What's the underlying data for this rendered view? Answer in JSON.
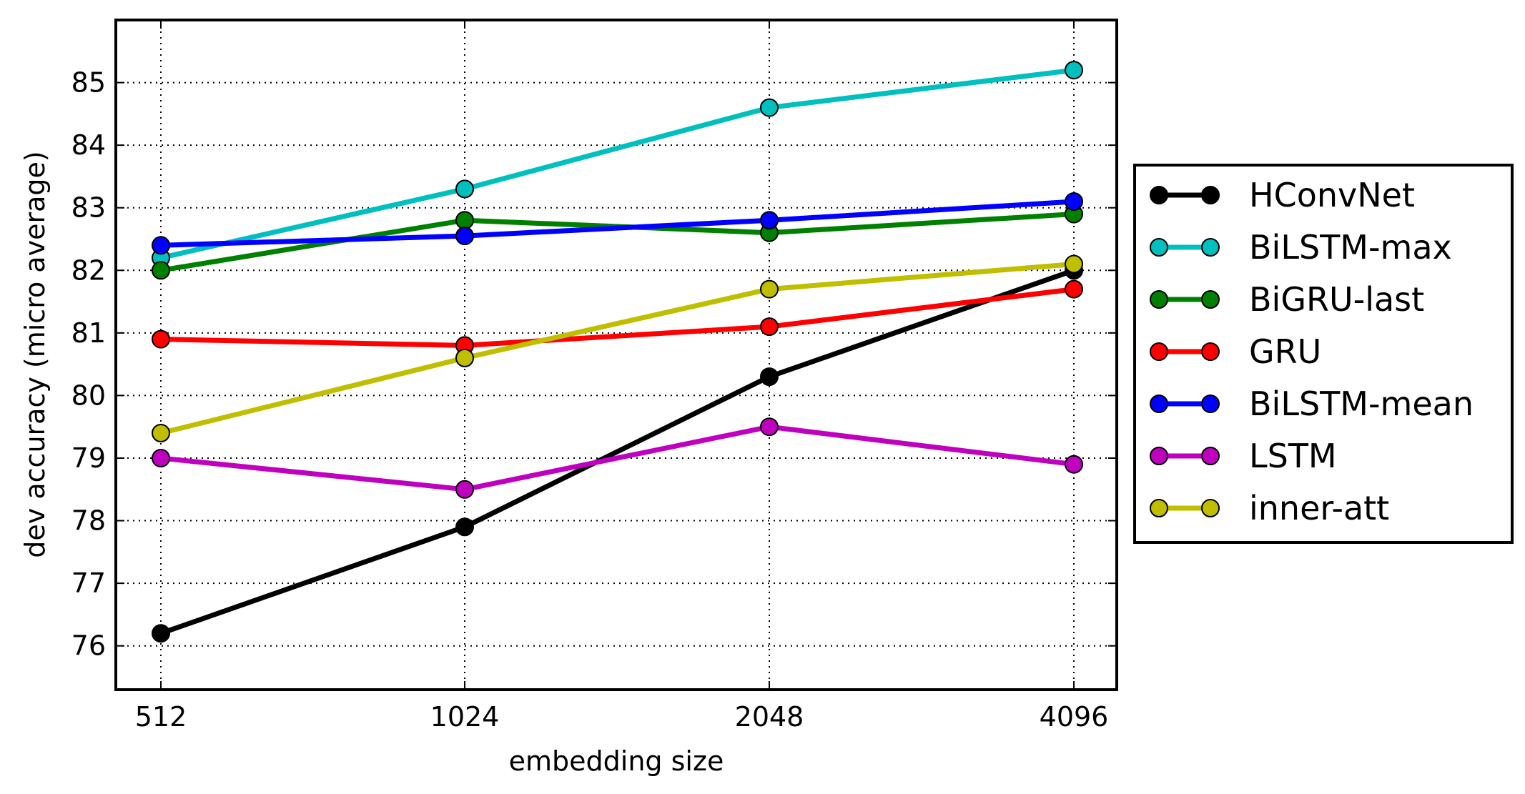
{
  "chart_data": {
    "type": "line",
    "title": "",
    "xlabel": "embedding size",
    "ylabel": "dev accuracy (micro average)",
    "categories": [
      "512",
      "1024",
      "2048",
      "4096"
    ],
    "ylim": [
      75.3,
      86.0
    ],
    "yticks": [
      76,
      77,
      78,
      79,
      80,
      81,
      82,
      83,
      84,
      85
    ],
    "grid": true,
    "legend_position": "outside-right",
    "series": [
      {
        "name": "HConvNet",
        "color": "#000000",
        "values": [
          76.2,
          77.9,
          80.3,
          82.0
        ]
      },
      {
        "name": "BiLSTM-max",
        "color": "#00bfbf",
        "values": [
          82.2,
          83.3,
          84.6,
          85.2
        ]
      },
      {
        "name": "BiGRU-last",
        "color": "#008000",
        "values": [
          82.0,
          82.8,
          82.6,
          82.9
        ]
      },
      {
        "name": "GRU",
        "color": "#ff0000",
        "values": [
          80.9,
          80.8,
          81.1,
          81.7
        ]
      },
      {
        "name": "BiLSTM-mean",
        "color": "#0000ff",
        "values": [
          82.4,
          82.55,
          82.8,
          83.1
        ]
      },
      {
        "name": "LSTM",
        "color": "#bf00bf",
        "values": [
          79.0,
          78.5,
          79.5,
          78.9
        ]
      },
      {
        "name": "inner-att",
        "color": "#bfbf00",
        "values": [
          79.4,
          80.6,
          81.7,
          82.1
        ]
      }
    ]
  }
}
